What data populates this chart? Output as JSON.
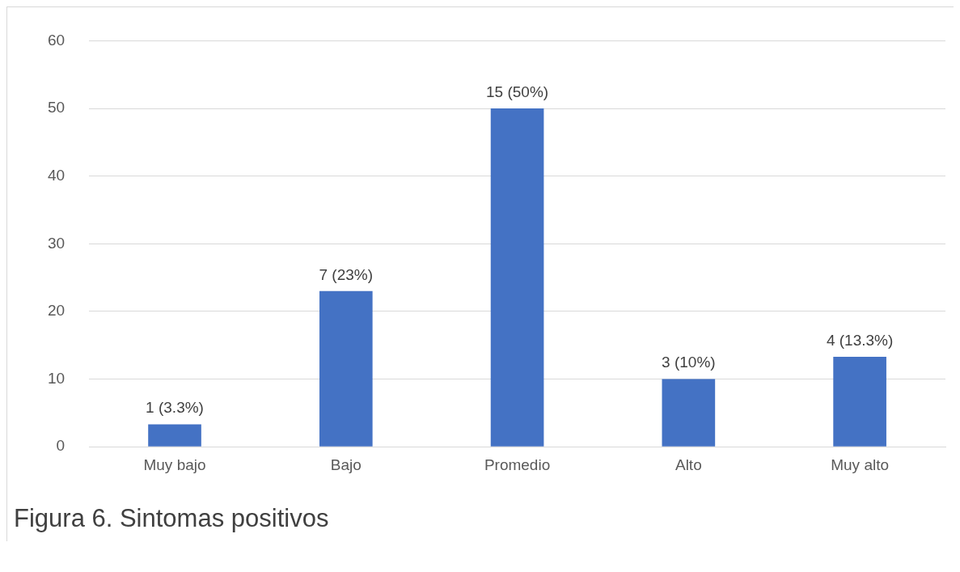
{
  "chart_data": {
    "type": "bar",
    "categories": [
      "Muy bajo",
      "Bajo",
      "Promedio",
      "Alto",
      "Muy alto"
    ],
    "values": [
      3.3,
      23,
      50,
      10,
      13.3
    ],
    "value_labels": [
      "1 (3.3%)",
      "7 (23%)",
      "15 (50%)",
      "3 (10%)",
      "4 (13.3%)"
    ],
    "color": "#4472c4",
    "ylim": [
      0,
      60
    ],
    "yticks": [
      0,
      10,
      20,
      30,
      40,
      50,
      60
    ],
    "grid": "y",
    "legend": false,
    "annotations": [
      "Figura 6. Sintomas positivos"
    ]
  }
}
